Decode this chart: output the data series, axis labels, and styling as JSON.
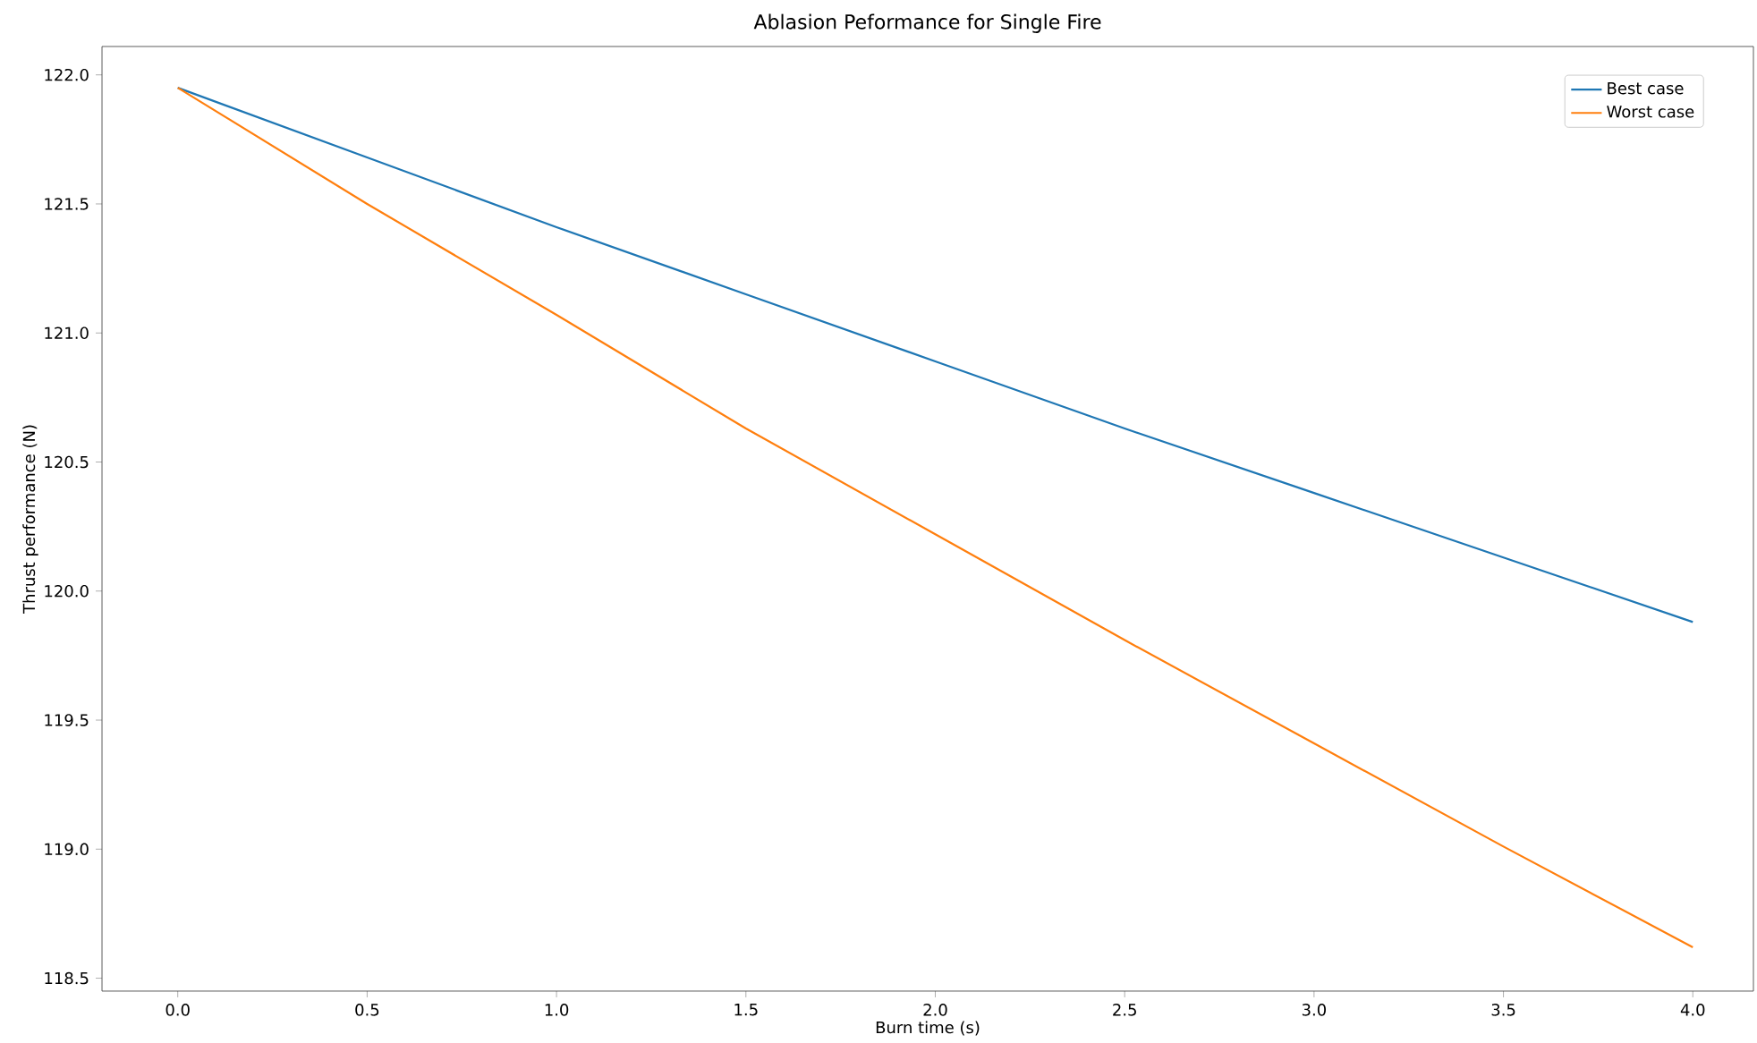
{
  "chart_data": {
    "type": "line",
    "title": "Ablasion Peformance for Single Fire",
    "xlabel": "Burn time (s)",
    "ylabel": "Thrust performance (N)",
    "x": [
      0,
      0.5,
      1,
      1.5,
      2,
      2.5,
      3,
      3.5,
      4
    ],
    "series": [
      {
        "name": "Best case",
        "color": "#1f77b4",
        "values": [
          121.95,
          121.68,
          121.41,
          121.15,
          120.89,
          120.63,
          120.38,
          120.13,
          119.88
        ]
      },
      {
        "name": "Worst case",
        "color": "#ff7f0e",
        "values": [
          121.95,
          121.5,
          121.07,
          120.63,
          120.22,
          119.81,
          119.41,
          119.01,
          118.62
        ]
      }
    ],
    "xlim": [
      -0.2,
      4.16
    ],
    "ylim": [
      118.45,
      122.11
    ],
    "xticks": [
      {
        "value": 0,
        "label": "0.0"
      },
      0.5,
      {
        "value": 1,
        "label": "1.0"
      },
      1.5,
      {
        "value": 2,
        "label": "2.0"
      },
      2.5,
      {
        "value": 3,
        "label": "3.0"
      },
      3.5,
      {
        "value": 4,
        "label": "4.0"
      }
    ],
    "yticks": [
      118.5,
      {
        "value": 119,
        "label": "119.0"
      },
      119.5,
      {
        "value": 120,
        "label": "120.0"
      },
      120.5,
      {
        "value": 121,
        "label": "121.0"
      },
      121.5,
      {
        "value": 122,
        "label": "122.0"
      }
    ],
    "grid": false,
    "legend": "top right",
    "marker": "none",
    "line_style": "solid"
  }
}
